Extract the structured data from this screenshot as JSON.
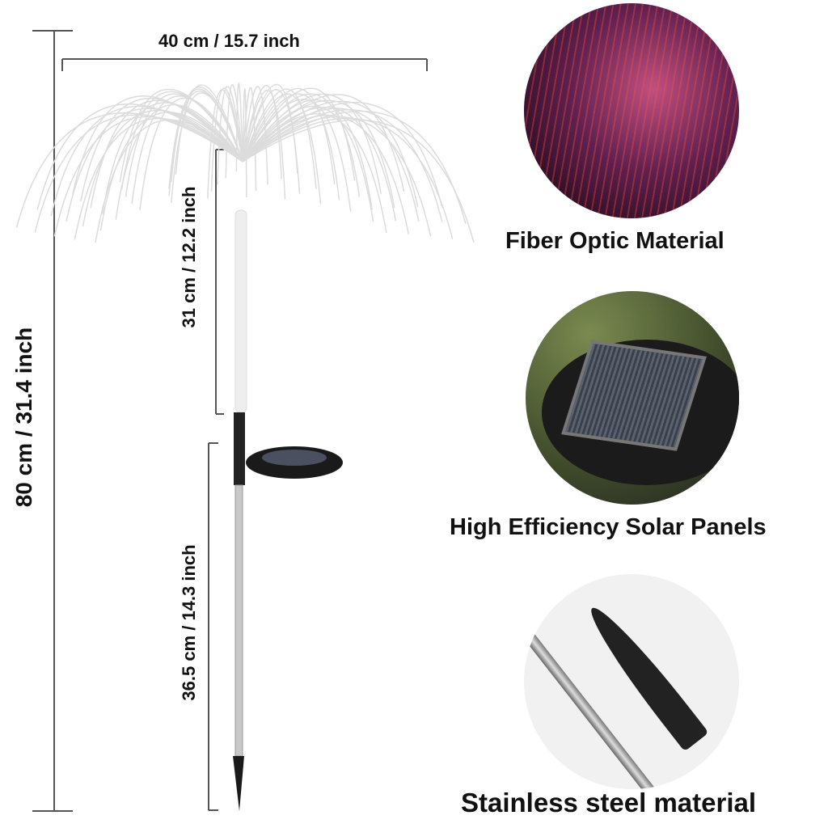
{
  "dimensions": {
    "width": "40 cm / 15.7 inch",
    "total_height": "80 cm / 31.4 inch",
    "light_height": "31 cm / 12.2 inch",
    "stake_height": "36.5 cm / 14.3 inch"
  },
  "features": [
    {
      "label": "Fiber Optic Material",
      "icon": "fiber-optic-photo"
    },
    {
      "label": "High Efficiency Solar Panels",
      "icon": "solar-panel-photo"
    },
    {
      "label": "Stainless steel material",
      "icon": "steel-stake-photo"
    }
  ],
  "colors": {
    "text": "#111111",
    "line": "#555555"
  }
}
